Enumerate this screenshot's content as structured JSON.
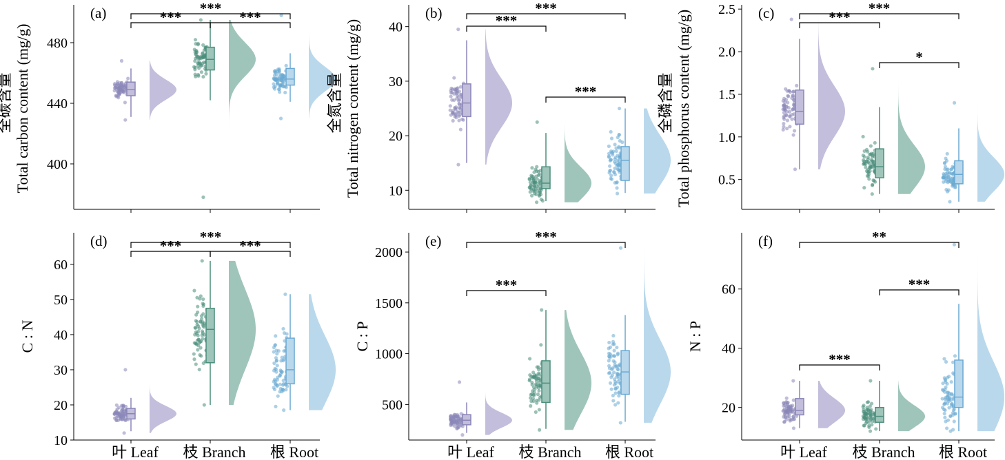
{
  "chart_data": [
    {
      "type": "raincloud",
      "panel_label": "(a)",
      "ylabel": [
        "全碳含量",
        "Total carbon content (mg/g)"
      ],
      "ylim": [
        370,
        505
      ],
      "yticks": [
        400,
        440,
        480
      ],
      "categories": [
        "叶 Leaf",
        "枝 Branch",
        "根 Root"
      ],
      "series": [
        {
          "category": "叶 Leaf",
          "q1": 445,
          "median": 449,
          "q3": 454,
          "whisker_low": 431,
          "whisker_high": 463,
          "min": 429,
          "max": 468
        },
        {
          "category": "枝 Branch",
          "q1": 462,
          "median": 469,
          "q3": 477,
          "whisker_low": 442,
          "whisker_high": 495,
          "min": 378,
          "max": 495
        },
        {
          "category": "根 Root",
          "q1": 452,
          "median": 456,
          "q3": 463,
          "whisker_low": 441,
          "whisker_high": 473,
          "min": 430,
          "max": 498
        }
      ],
      "significance": [
        {
          "from": "叶 Leaf",
          "to": "根 Root",
          "label": "***",
          "level": 0
        },
        {
          "from": "叶 Leaf",
          "to": "枝 Branch",
          "label": "***",
          "level": 1
        },
        {
          "from": "枝 Branch",
          "to": "根 Root",
          "label": "***",
          "level": 1
        }
      ]
    },
    {
      "type": "raincloud",
      "panel_label": "(b)",
      "ylabel": [
        "全氮含量",
        "Total nitrogen content (mg/g)"
      ],
      "ylim": [
        6.5,
        44
      ],
      "yticks": [
        10,
        20,
        30,
        40
      ],
      "categories": [
        "叶 Leaf",
        "枝 Branch",
        "根 Root"
      ],
      "series": [
        {
          "category": "叶 Leaf",
          "q1": 23.5,
          "median": 26,
          "q3": 29.5,
          "whisker_low": 15,
          "whisker_high": 37.5,
          "min": 14.7,
          "max": 39.5
        },
        {
          "category": "枝 Branch",
          "q1": 10.3,
          "median": 11.3,
          "q3": 14.3,
          "whisker_low": 8,
          "whisker_high": 20.5,
          "min": 7.8,
          "max": 22.5
        },
        {
          "category": "根 Root",
          "q1": 11.8,
          "median": 15.5,
          "q3": 18,
          "whisker_low": 9.5,
          "whisker_high": 25,
          "min": 9.4,
          "max": 25
        }
      ],
      "significance": [
        {
          "from": "叶 Leaf",
          "to": "根 Root",
          "label": "***",
          "level": 0
        },
        {
          "from": "叶 Leaf",
          "to": "枝 Branch",
          "label": "***",
          "level": 1
        },
        {
          "from": "枝 Branch",
          "to": "根 Root",
          "label": "***",
          "level": 2
        }
      ]
    },
    {
      "type": "raincloud",
      "panel_label": "(c)",
      "ylabel": [
        "全磷含量",
        "Total phosphorus content (mg/g)"
      ],
      "ylim": [
        0.15,
        2.55
      ],
      "yticks": [
        0.5,
        1.0,
        1.5,
        2.0,
        2.5
      ],
      "ytick_labels": [
        "0.5",
        "1.0",
        "1.5",
        "2.0",
        "2.5"
      ],
      "categories": [
        "叶 Leaf",
        "枝 Branch",
        "根 Root"
      ],
      "series": [
        {
          "category": "叶 Leaf",
          "q1": 1.15,
          "median": 1.3,
          "q3": 1.55,
          "whisker_low": 0.62,
          "whisker_high": 2.15,
          "min": 0.62,
          "max": 2.38
        },
        {
          "category": "枝 Branch",
          "q1": 0.52,
          "median": 0.65,
          "q3": 0.86,
          "whisker_low": 0.33,
          "whisker_high": 1.35,
          "min": 0.33,
          "max": 1.8
        },
        {
          "category": "根 Root",
          "q1": 0.45,
          "median": 0.56,
          "q3": 0.72,
          "whisker_low": 0.24,
          "whisker_high": 1.1,
          "min": 0.24,
          "max": 1.4
        }
      ],
      "significance": [
        {
          "from": "叶 Leaf",
          "to": "根 Root",
          "label": "***",
          "level": 0
        },
        {
          "from": "叶 Leaf",
          "to": "枝 Branch",
          "label": "***",
          "level": 1
        },
        {
          "from": "枝 Branch",
          "to": "根 Root",
          "label": "*",
          "level": 2
        }
      ]
    },
    {
      "type": "raincloud",
      "panel_label": "(d)",
      "ylabel": [
        "C : N"
      ],
      "ylim": [
        10,
        69
      ],
      "yticks": [
        10,
        20,
        30,
        40,
        50,
        60
      ],
      "categories": [
        "叶 Leaf",
        "枝 Branch",
        "根 Root"
      ],
      "series": [
        {
          "category": "叶 Leaf",
          "q1": 16,
          "median": 17.5,
          "q3": 19,
          "whisker_low": 12.5,
          "whisker_high": 22,
          "min": 12,
          "max": 30
        },
        {
          "category": "枝 Branch",
          "q1": 32,
          "median": 41.5,
          "q3": 47.5,
          "whisker_low": 20,
          "whisker_high": 61,
          "min": 20,
          "max": 61
        },
        {
          "category": "根 Root",
          "q1": 26,
          "median": 30,
          "q3": 39,
          "whisker_low": 18.5,
          "whisker_high": 51.5,
          "min": 18.5,
          "max": 51.5
        }
      ],
      "significance": [
        {
          "from": "叶 Leaf",
          "to": "根 Root",
          "label": "***",
          "level": 0
        },
        {
          "from": "叶 Leaf",
          "to": "枝 Branch",
          "label": "***",
          "level": 1
        },
        {
          "from": "枝 Branch",
          "to": "根 Root",
          "label": "***",
          "level": 1
        }
      ]
    },
    {
      "type": "raincloud",
      "panel_label": "(e)",
      "ylabel": [
        "C : P"
      ],
      "ylim": [
        150,
        2190
      ],
      "yticks": [
        500,
        1000,
        1500,
        2000
      ],
      "categories": [
        "叶 Leaf",
        "枝 Branch",
        "根 Root"
      ],
      "series": [
        {
          "category": "叶 Leaf",
          "q1": 300,
          "median": 345,
          "q3": 400,
          "whisker_low": 220,
          "whisker_high": 520,
          "min": 200,
          "max": 720
        },
        {
          "category": "枝 Branch",
          "q1": 520,
          "median": 710,
          "q3": 930,
          "whisker_low": 260,
          "whisker_high": 1430,
          "min": 250,
          "max": 1430
        },
        {
          "category": "根 Root",
          "q1": 600,
          "median": 820,
          "q3": 1030,
          "whisker_low": 330,
          "whisker_high": 1380,
          "min": 320,
          "max": 2040
        }
      ],
      "significance": [
        {
          "from": "叶 Leaf",
          "to": "根 Root",
          "label": "***",
          "level": 0
        },
        {
          "from": "叶 Leaf",
          "to": "枝 Branch",
          "label": "***",
          "level": 2
        }
      ]
    },
    {
      "type": "raincloud",
      "panel_label": "(f)",
      "ylabel": [
        "N : P"
      ],
      "ylim": [
        9,
        79
      ],
      "yticks": [
        20,
        40,
        60
      ],
      "categories": [
        "叶 Leaf",
        "枝 Branch",
        "根 Root"
      ],
      "series": [
        {
          "category": "叶 Leaf",
          "q1": 17.5,
          "median": 19,
          "q3": 23,
          "whisker_low": 13,
          "whisker_high": 29,
          "min": 13,
          "max": 29
        },
        {
          "category": "枝 Branch",
          "q1": 15,
          "median": 17,
          "q3": 20,
          "whisker_low": 12,
          "whisker_high": 29,
          "min": 12,
          "max": 29
        },
        {
          "category": "根 Root",
          "q1": 20,
          "median": 23.5,
          "q3": 36,
          "whisker_low": 12,
          "whisker_high": 55,
          "min": 12,
          "max": 75
        }
      ],
      "significance": [
        {
          "from": "叶 Leaf",
          "to": "根 Root",
          "label": "**",
          "level": 0
        },
        {
          "from": "枝 Branch",
          "to": "根 Root",
          "label": "***",
          "level": 1
        },
        {
          "from": "叶 Leaf",
          "to": "枝 Branch",
          "label": "***",
          "level": 3
        }
      ]
    }
  ],
  "colors": {
    "leaf": "#8b86b8",
    "leaf_fill": "#c2bedb",
    "branch": "#4b8e7c",
    "branch_fill": "#9fc5ba",
    "root": "#6aa9d2",
    "root_fill": "#b9d8ec"
  }
}
